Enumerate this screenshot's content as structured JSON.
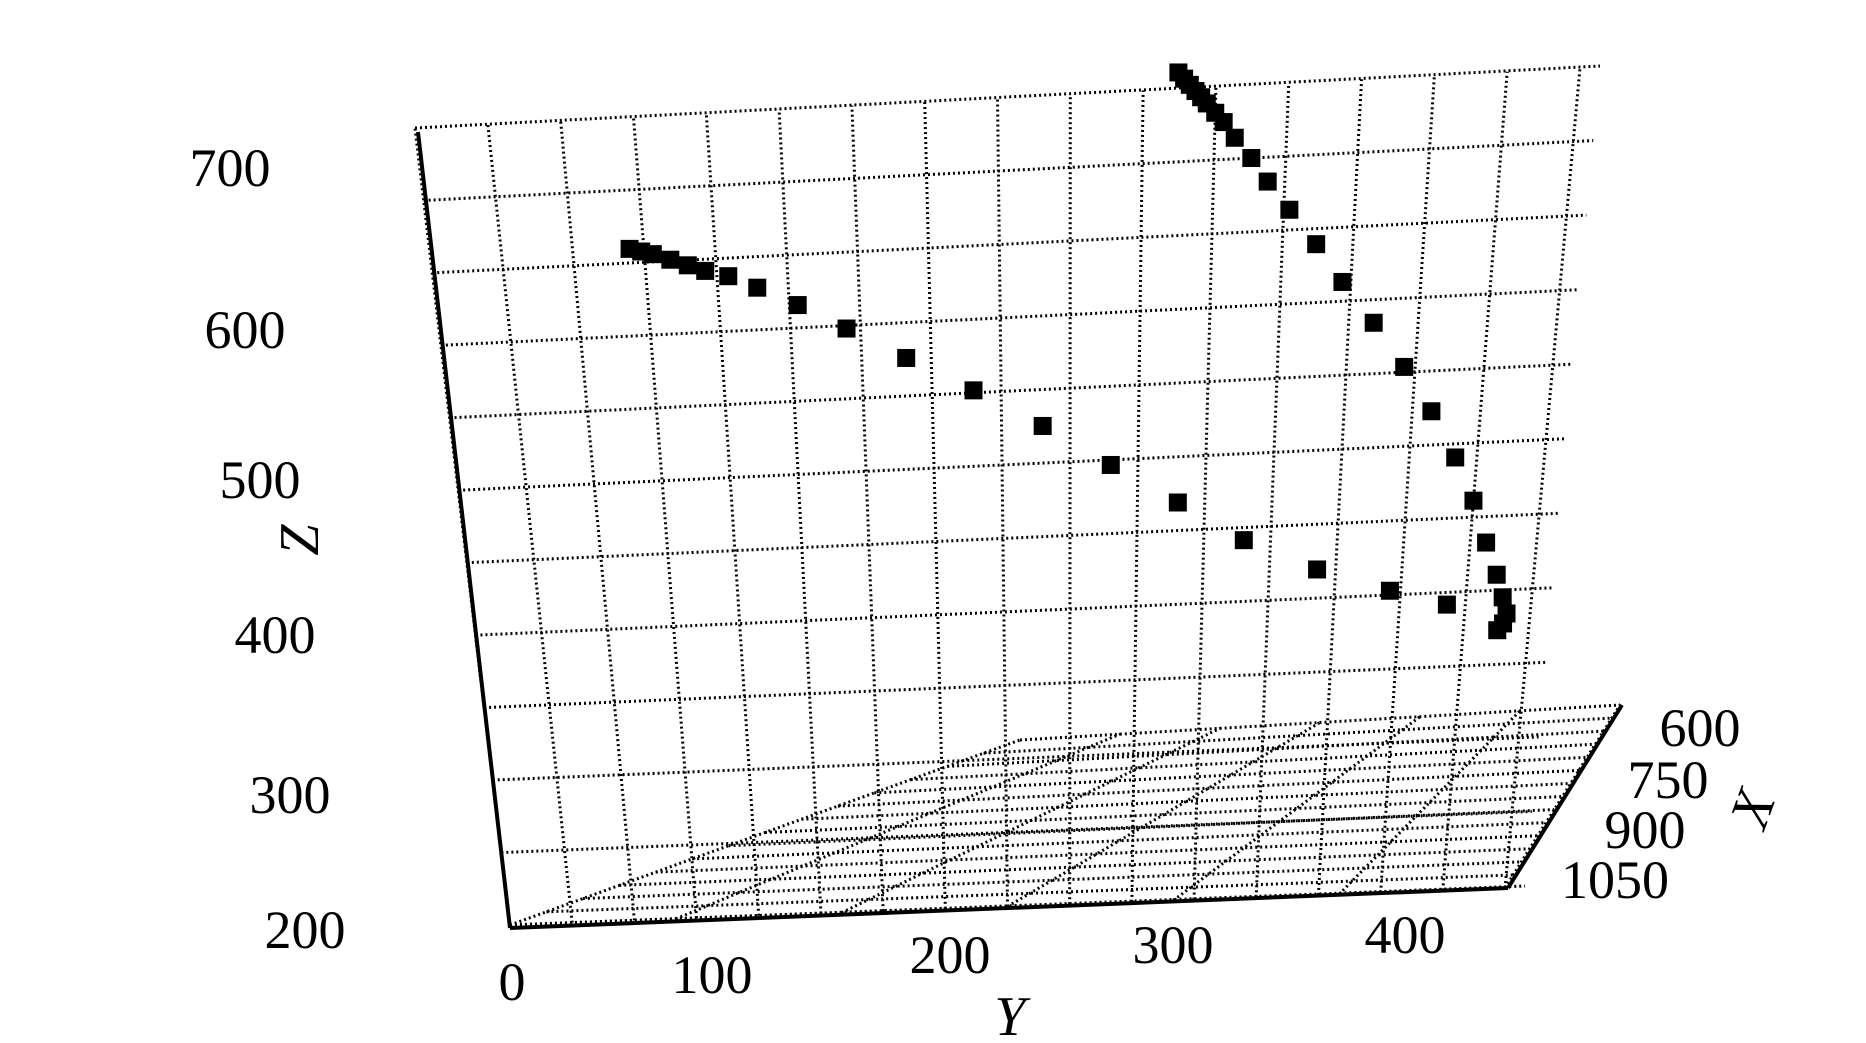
{
  "chart_data": {
    "type": "scatter",
    "projection": "3d",
    "xlabel": "X",
    "ylabel": "Y",
    "zlabel": "Z",
    "x_ticks": [
      "600",
      "750",
      "900",
      "1050"
    ],
    "y_ticks": [
      "0",
      "100",
      "200",
      "300",
      "400"
    ],
    "z_ticks": [
      "200",
      "300",
      "400",
      "500",
      "600",
      "700"
    ],
    "ylim": [
      0,
      400
    ],
    "zlim": [
      200,
      700
    ],
    "grid": true,
    "marker": "square",
    "series": [
      {
        "points": [
          {
            "y": 70,
            "z": 618
          },
          {
            "y": 74,
            "z": 616
          },
          {
            "y": 78,
            "z": 614
          },
          {
            "y": 84,
            "z": 610
          },
          {
            "y": 90,
            "z": 606
          },
          {
            "y": 96,
            "z": 602
          },
          {
            "y": 104,
            "z": 598
          },
          {
            "y": 114,
            "z": 590
          },
          {
            "y": 128,
            "z": 578
          },
          {
            "y": 145,
            "z": 562
          },
          {
            "y": 166,
            "z": 542
          },
          {
            "y": 190,
            "z": 520
          },
          {
            "y": 215,
            "z": 496
          },
          {
            "y": 240,
            "z": 470
          },
          {
            "y": 265,
            "z": 445
          },
          {
            "y": 290,
            "z": 420
          },
          {
            "y": 318,
            "z": 400
          },
          {
            "y": 346,
            "z": 385
          },
          {
            "y": 368,
            "z": 375
          }
        ]
      },
      {
        "points": [
          {
            "y": 262,
            "z": 710
          },
          {
            "y": 264,
            "z": 706
          },
          {
            "y": 266,
            "z": 702
          },
          {
            "y": 268,
            "z": 698
          },
          {
            "y": 270,
            "z": 694
          },
          {
            "y": 272,
            "z": 690
          },
          {
            "y": 275,
            "z": 684
          },
          {
            "y": 278,
            "z": 678
          },
          {
            "y": 282,
            "z": 668
          },
          {
            "y": 288,
            "z": 655
          },
          {
            "y": 294,
            "z": 640
          },
          {
            "y": 302,
            "z": 622
          },
          {
            "y": 312,
            "z": 600
          },
          {
            "y": 322,
            "z": 576
          },
          {
            "y": 334,
            "z": 550
          },
          {
            "y": 346,
            "z": 522
          },
          {
            "y": 357,
            "z": 494
          },
          {
            "y": 367,
            "z": 465
          },
          {
            "y": 375,
            "z": 438
          },
          {
            "y": 381,
            "z": 412
          },
          {
            "y": 386,
            "z": 392
          },
          {
            "y": 389,
            "z": 378
          },
          {
            "y": 391,
            "z": 368
          },
          {
            "y": 390,
            "z": 362
          },
          {
            "y": 388,
            "z": 358
          }
        ]
      }
    ]
  }
}
